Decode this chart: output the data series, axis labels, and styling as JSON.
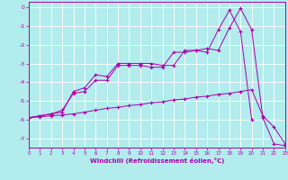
{
  "xlabel": "Windchill (Refroidissement éolien,°C)",
  "bg_color": "#b2ecec",
  "grid_color": "#ffffff",
  "line_color": "#aa00aa",
  "xlim": [
    0,
    23
  ],
  "ylim": [
    -7.5,
    0.3
  ],
  "xticks": [
    0,
    1,
    2,
    3,
    4,
    5,
    6,
    7,
    8,
    9,
    10,
    11,
    12,
    13,
    14,
    15,
    16,
    17,
    18,
    19,
    20,
    21,
    22,
    23
  ],
  "yticks": [
    0,
    -1,
    -2,
    -3,
    -4,
    -5,
    -6,
    -7
  ],
  "line1_x": [
    0,
    1,
    2,
    3,
    4,
    5,
    6,
    7,
    8,
    9,
    10,
    11,
    12,
    13,
    14,
    15,
    16,
    17,
    18,
    19,
    20,
    21,
    22,
    23
  ],
  "line1_y": [
    -5.9,
    -5.8,
    -5.7,
    -5.6,
    -4.5,
    -4.3,
    -3.6,
    -3.7,
    -3.0,
    -3.0,
    -3.0,
    -3.0,
    -3.1,
    -3.1,
    -2.3,
    -2.3,
    -2.2,
    -2.3,
    -1.1,
    -0.05,
    -1.2,
    -5.9,
    -7.3,
    -7.4
  ],
  "line2_x": [
    0,
    1,
    2,
    3,
    4,
    5,
    6,
    7,
    8,
    9,
    10,
    11,
    12,
    13,
    14,
    15,
    16,
    17,
    18,
    19,
    20
  ],
  "line2_y": [
    -5.9,
    -5.8,
    -5.7,
    -5.5,
    -4.6,
    -4.5,
    -3.9,
    -3.9,
    -3.1,
    -3.1,
    -3.1,
    -3.2,
    -3.2,
    -2.4,
    -2.4,
    -2.3,
    -2.4,
    -1.2,
    -0.15,
    -1.3,
    -6.0
  ],
  "line3_x": [
    0,
    1,
    2,
    3,
    4,
    5,
    6,
    7,
    8,
    9,
    10,
    11,
    12,
    13,
    14,
    15,
    16,
    17,
    18,
    19,
    20,
    21,
    22,
    23
  ],
  "line3_y": [
    -5.9,
    -5.85,
    -5.8,
    -5.75,
    -5.7,
    -5.6,
    -5.5,
    -5.4,
    -5.35,
    -5.25,
    -5.2,
    -5.1,
    -5.05,
    -4.95,
    -4.9,
    -4.8,
    -4.75,
    -4.65,
    -4.6,
    -4.5,
    -4.4,
    -5.8,
    -6.4,
    -7.3
  ]
}
